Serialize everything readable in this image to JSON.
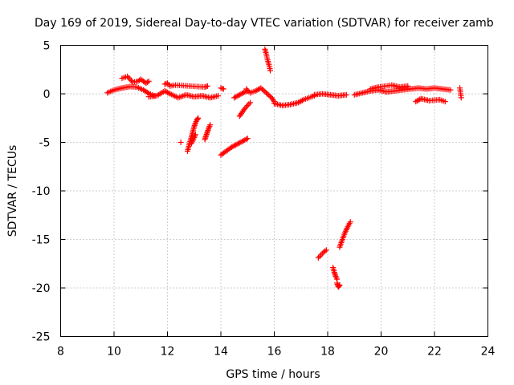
{
  "chart_data": {
    "type": "scatter",
    "title": "Day 169 of 2019, Sidereal Day-to-day VTEC variation (SDTVAR) for receiver zamb",
    "xlabel": "GPS time / hours",
    "ylabel": "SDTVAR / TECUs",
    "xlim": [
      8,
      24
    ],
    "ylim": [
      -25,
      5
    ],
    "xticks": [
      "8",
      "10",
      "12",
      "14",
      "16",
      "18",
      "20",
      "22",
      "24"
    ],
    "yticks": [
      "5",
      "0",
      "-5",
      "-10",
      "-15",
      "-20",
      "-25"
    ],
    "grid": true,
    "marker": "+",
    "color": "#ff0000",
    "segments": [
      {
        "x": [
          9.75,
          10.0,
          10.3,
          10.6,
          10.85,
          11.1,
          11.3,
          11.5
        ],
        "y": [
          0.1,
          0.4,
          0.6,
          0.75,
          0.7,
          0.4,
          0.05,
          -0.2
        ]
      },
      {
        "x": [
          10.3,
          10.5,
          10.7,
          10.9,
          11.0,
          11.2,
          11.3
        ],
        "y": [
          1.6,
          1.8,
          1.2,
          1.3,
          1.5,
          1.1,
          1.3
        ]
      },
      {
        "x": [
          11.3,
          11.6,
          11.9,
          12.1,
          12.4,
          12.7,
          13.0,
          13.3,
          13.6,
          13.9
        ],
        "y": [
          -0.3,
          -0.2,
          0.3,
          0.0,
          -0.4,
          -0.1,
          -0.3,
          -0.2,
          -0.4,
          -0.2
        ]
      },
      {
        "x": [
          11.9,
          12.0,
          12.1,
          12.3,
          13.4,
          13.5
        ],
        "y": [
          1.0,
          1.1,
          0.8,
          0.9,
          0.7,
          0.8
        ]
      },
      {
        "x": [
          14.0,
          14.1
        ],
        "y": [
          0.6,
          0.5
        ]
      },
      {
        "x": [
          12.5
        ],
        "y": [
          -5.0
        ]
      },
      {
        "x": [
          12.75,
          12.8,
          12.85,
          12.9,
          12.95,
          13.0,
          13.05,
          13.1,
          13.15
        ],
        "y": [
          -5.9,
          -5.4,
          -4.9,
          -4.4,
          -3.9,
          -3.4,
          -3.0,
          -2.7,
          -2.5
        ]
      },
      {
        "x": [
          12.9,
          12.95,
          13.0,
          13.05
        ],
        "y": [
          -5.1,
          -4.8,
          -4.5,
          -4.2
        ]
      },
      {
        "x": [
          13.4,
          13.45,
          13.5,
          13.55,
          13.6
        ],
        "y": [
          -4.7,
          -4.3,
          -3.9,
          -3.5,
          -3.2
        ]
      },
      {
        "x": [
          14.0,
          14.2,
          14.4,
          14.6,
          14.8,
          15.0
        ],
        "y": [
          -6.3,
          -5.9,
          -5.5,
          -5.2,
          -4.9,
          -4.6
        ]
      },
      {
        "x": [
          14.5,
          14.7,
          14.9,
          15.0
        ],
        "y": [
          -0.4,
          -0.1,
          0.2,
          0.3
        ]
      },
      {
        "x": [
          14.7,
          14.8,
          14.9,
          15.0,
          15.1
        ],
        "y": [
          -2.3,
          -1.9,
          -1.5,
          -1.2,
          -0.9
        ]
      },
      {
        "x": [
          14.95,
          15.1,
          15.3,
          15.5,
          15.7,
          15.9,
          16.0
        ],
        "y": [
          0.5,
          0.1,
          0.3,
          0.6,
          0.1,
          -0.4,
          -0.8
        ]
      },
      {
        "x": [
          15.65,
          15.7,
          15.75,
          15.8,
          15.85
        ],
        "y": [
          4.6,
          4.1,
          3.5,
          3.0,
          2.4
        ]
      },
      {
        "x": [
          16.0,
          16.3,
          16.6,
          16.9,
          17.1,
          17.3,
          17.5
        ],
        "y": [
          -1.0,
          -1.2,
          -1.1,
          -0.9,
          -0.6,
          -0.4,
          -0.2
        ]
      },
      {
        "x": [
          17.5,
          17.8,
          18.1,
          18.4,
          18.7
        ],
        "y": [
          -0.1,
          0.0,
          -0.1,
          -0.2,
          -0.1
        ]
      },
      {
        "x": [
          17.65,
          17.75,
          17.85,
          17.95
        ],
        "y": [
          -16.9,
          -16.6,
          -16.3,
          -16.1
        ]
      },
      {
        "x": [
          18.2,
          18.25,
          18.3,
          18.35
        ],
        "y": [
          -17.9,
          -18.4,
          -18.8,
          -19.1
        ]
      },
      {
        "x": [
          18.35,
          18.4,
          18.45
        ],
        "y": [
          -19.5,
          -19.9,
          -19.7
        ]
      },
      {
        "x": [
          18.45,
          18.55,
          18.65,
          18.75,
          18.85
        ],
        "y": [
          -15.8,
          -15.0,
          -14.3,
          -13.7,
          -13.2
        ]
      },
      {
        "x": [
          19.0,
          19.3,
          19.6,
          19.9,
          20.2,
          20.5,
          20.8,
          21.1,
          21.4,
          21.7,
          22.0,
          22.3,
          22.6
        ],
        "y": [
          -0.1,
          0.1,
          0.3,
          0.4,
          0.2,
          0.3,
          0.4,
          0.5,
          0.6,
          0.5,
          0.6,
          0.5,
          0.4
        ]
      },
      {
        "x": [
          19.6,
          19.9,
          20.4,
          20.7,
          21.0
        ],
        "y": [
          0.5,
          0.7,
          0.9,
          0.7,
          0.8
        ]
      },
      {
        "x": [
          21.3,
          21.5,
          21.8,
          22.2,
          22.4
        ],
        "y": [
          -0.8,
          -0.5,
          -0.7,
          -0.6,
          -0.8
        ]
      },
      {
        "x": [
          22.95,
          23.0
        ],
        "y": [
          0.6,
          -0.4
        ]
      }
    ]
  }
}
